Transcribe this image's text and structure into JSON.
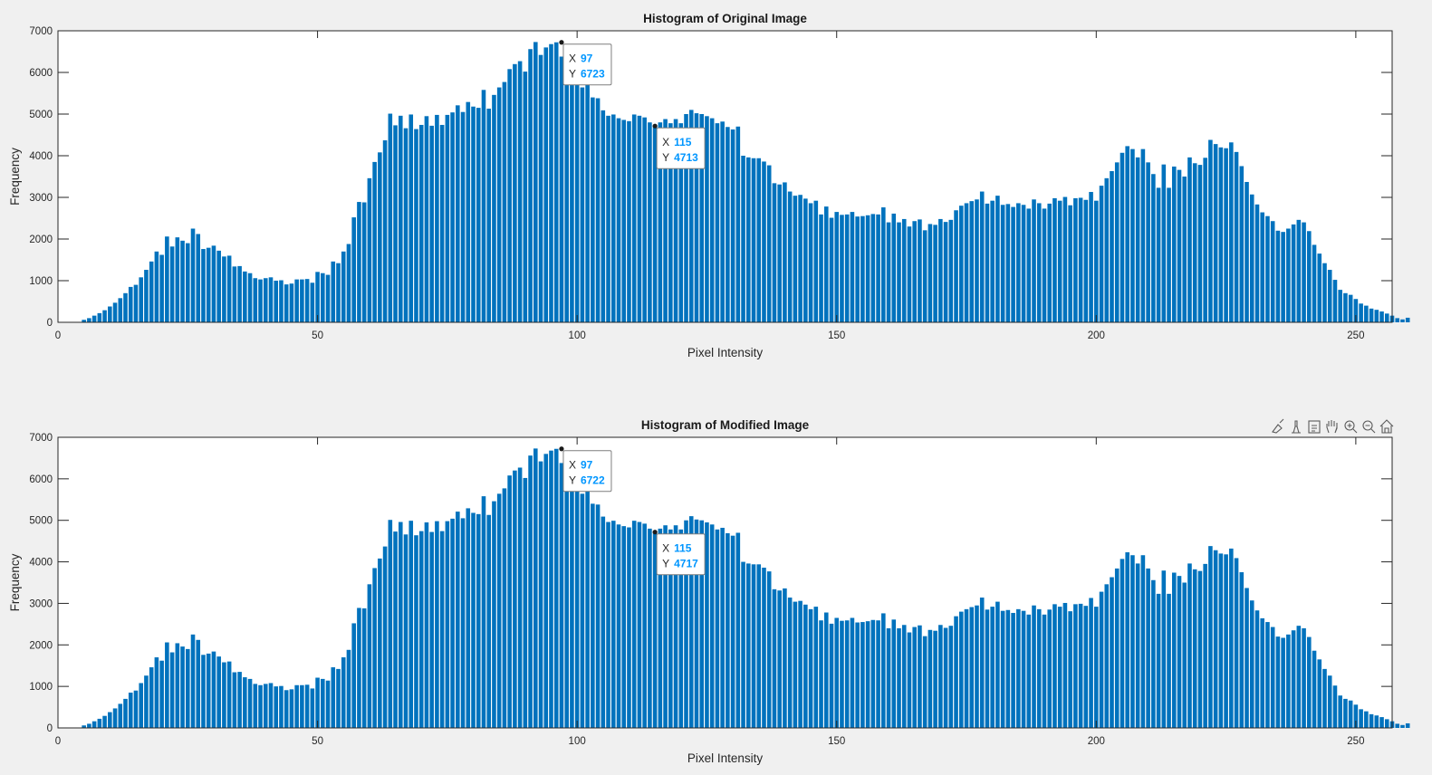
{
  "colors": {
    "bar": "#0072bd",
    "background": "#f0f0f0",
    "axes_bg": "#ffffff",
    "datatip_value": "#0096ff"
  },
  "toolbar": {
    "icons": [
      "brush-icon",
      "data-tip-icon",
      "export-icon",
      "pan-icon",
      "zoom-in-icon",
      "zoom-out-icon",
      "home-icon"
    ]
  },
  "chart_data": [
    {
      "type": "bar",
      "title": "Histogram of Original Image",
      "xlabel": "Pixel Intensity",
      "ylabel": "Frequency",
      "xlim": [
        0,
        257
      ],
      "ylim": [
        0,
        7000
      ],
      "xticks": [
        0,
        50,
        100,
        150,
        200,
        250
      ],
      "yticks": [
        0,
        1000,
        2000,
        3000,
        4000,
        5000,
        6000,
        7000
      ],
      "grid": false,
      "x_start": 0,
      "values": [
        0,
        0,
        0,
        0,
        0,
        60,
        100,
        160,
        220,
        290,
        380,
        470,
        580,
        700,
        850,
        900,
        1080,
        1260,
        1460,
        1700,
        1620,
        2060,
        1820,
        2040,
        1960,
        1900,
        2250,
        2120,
        1760,
        1790,
        1840,
        1720,
        1580,
        1600,
        1340,
        1350,
        1220,
        1180,
        1060,
        1030,
        1060,
        1080,
        1000,
        1010,
        910,
        930,
        1030,
        1030,
        1040,
        950,
        1210,
        1180,
        1140,
        1460,
        1420,
        1700,
        1880,
        2520,
        2890,
        2880,
        3460,
        3850,
        4080,
        4370,
        5010,
        4730,
        4960,
        4660,
        4990,
        4640,
        4740,
        4950,
        4720,
        4980,
        4740,
        4980,
        5040,
        5210,
        5050,
        5290,
        5180,
        5150,
        5580,
        5130,
        5460,
        5640,
        5770,
        6080,
        6200,
        6270,
        6020,
        6560,
        6730,
        6420,
        6600,
        6680,
        6723,
        6380,
        6040,
        6450,
        6040,
        5640,
        5820,
        5400,
        5380,
        5090,
        4960,
        4990,
        4900,
        4860,
        4830,
        4990,
        4960,
        4920,
        4800,
        4713,
        4800,
        4880,
        4780,
        4880,
        4780,
        5000,
        5100,
        5020,
        5000,
        4950,
        4900,
        4780,
        4820,
        4690,
        4630,
        4700,
        4000,
        3960,
        3940,
        3940,
        3860,
        3770,
        3340,
        3310,
        3360,
        3140,
        3040,
        3060,
        2970,
        2860,
        2920,
        2590,
        2780,
        2510,
        2650,
        2580,
        2590,
        2650,
        2540,
        2550,
        2570,
        2600,
        2590,
        2760,
        2400,
        2610,
        2400,
        2480,
        2300,
        2430,
        2470,
        2210,
        2360,
        2340,
        2480,
        2410,
        2460,
        2690,
        2800,
        2860,
        2910,
        2950,
        3140,
        2850,
        2920,
        3040,
        2820,
        2840,
        2770,
        2860,
        2820,
        2730,
        2950,
        2860,
        2730,
        2850,
        2980,
        2920,
        3010,
        2810,
        2980,
        2990,
        2940,
        3130,
        2920,
        3280,
        3460,
        3630,
        3840,
        4070,
        4230,
        4160,
        3960,
        4160,
        3840,
        3560,
        3230,
        3790,
        3230,
        3740,
        3660,
        3500,
        3960,
        3820,
        3780,
        3950,
        4380,
        4280,
        4200,
        4180,
        4320,
        4090,
        3750,
        3370,
        3070,
        2830,
        2640,
        2550,
        2430,
        2200,
        2170,
        2250,
        2350,
        2460,
        2400,
        2190,
        1860,
        1650,
        1420,
        1260,
        1020,
        780,
        700,
        660,
        560,
        450,
        400,
        330,
        300,
        260,
        210,
        160,
        100,
        70,
        110
      ],
      "datatips": [
        {
          "x": 97,
          "y": 6723
        },
        {
          "x": 115,
          "y": 4713
        }
      ]
    },
    {
      "type": "bar",
      "title": "Histogram of Modified Image",
      "xlabel": "Pixel Intensity",
      "ylabel": "Frequency",
      "xlim": [
        0,
        257
      ],
      "ylim": [
        0,
        7000
      ],
      "xticks": [
        0,
        50,
        100,
        150,
        200,
        250
      ],
      "yticks": [
        0,
        1000,
        2000,
        3000,
        4000,
        5000,
        6000,
        7000
      ],
      "grid": false,
      "x_start": 0,
      "values": [
        0,
        0,
        0,
        0,
        0,
        60,
        100,
        160,
        220,
        290,
        380,
        470,
        580,
        700,
        850,
        900,
        1080,
        1260,
        1460,
        1700,
        1620,
        2060,
        1820,
        2040,
        1960,
        1900,
        2250,
        2120,
        1760,
        1790,
        1840,
        1720,
        1580,
        1600,
        1340,
        1350,
        1220,
        1180,
        1060,
        1030,
        1060,
        1080,
        1000,
        1010,
        910,
        930,
        1030,
        1030,
        1040,
        950,
        1210,
        1180,
        1140,
        1460,
        1420,
        1700,
        1880,
        2520,
        2890,
        2880,
        3460,
        3850,
        4080,
        4370,
        5010,
        4730,
        4960,
        4660,
        4990,
        4640,
        4740,
        4950,
        4720,
        4980,
        4740,
        4980,
        5040,
        5210,
        5050,
        5290,
        5180,
        5150,
        5580,
        5130,
        5460,
        5640,
        5770,
        6080,
        6200,
        6270,
        6020,
        6560,
        6730,
        6420,
        6600,
        6680,
        6722,
        6380,
        6040,
        6450,
        6040,
        5640,
        5820,
        5400,
        5380,
        5090,
        4960,
        4990,
        4900,
        4860,
        4830,
        4990,
        4960,
        4920,
        4800,
        4717,
        4800,
        4880,
        4780,
        4880,
        4780,
        5000,
        5100,
        5020,
        5000,
        4950,
        4900,
        4780,
        4820,
        4690,
        4630,
        4700,
        4000,
        3960,
        3940,
        3940,
        3860,
        3770,
        3340,
        3310,
        3360,
        3140,
        3040,
        3060,
        2970,
        2860,
        2920,
        2590,
        2780,
        2510,
        2650,
        2580,
        2590,
        2650,
        2540,
        2550,
        2570,
        2600,
        2590,
        2760,
        2400,
        2610,
        2400,
        2480,
        2300,
        2430,
        2470,
        2210,
        2360,
        2340,
        2480,
        2410,
        2460,
        2690,
        2800,
        2860,
        2910,
        2950,
        3140,
        2850,
        2920,
        3040,
        2820,
        2840,
        2770,
        2860,
        2820,
        2730,
        2950,
        2860,
        2730,
        2850,
        2980,
        2920,
        3010,
        2810,
        2980,
        2990,
        2940,
        3130,
        2920,
        3280,
        3460,
        3630,
        3840,
        4070,
        4230,
        4160,
        3960,
        4160,
        3840,
        3560,
        3230,
        3790,
        3230,
        3740,
        3660,
        3500,
        3960,
        3820,
        3780,
        3950,
        4380,
        4280,
        4200,
        4180,
        4320,
        4090,
        3750,
        3370,
        3070,
        2830,
        2640,
        2550,
        2430,
        2200,
        2170,
        2250,
        2350,
        2460,
        2400,
        2190,
        1860,
        1650,
        1420,
        1260,
        1020,
        780,
        700,
        660,
        560,
        450,
        400,
        330,
        300,
        260,
        210,
        160,
        100,
        70,
        110
      ],
      "datatips": [
        {
          "x": 97,
          "y": 6722
        },
        {
          "x": 115,
          "y": 4717
        }
      ]
    }
  ]
}
